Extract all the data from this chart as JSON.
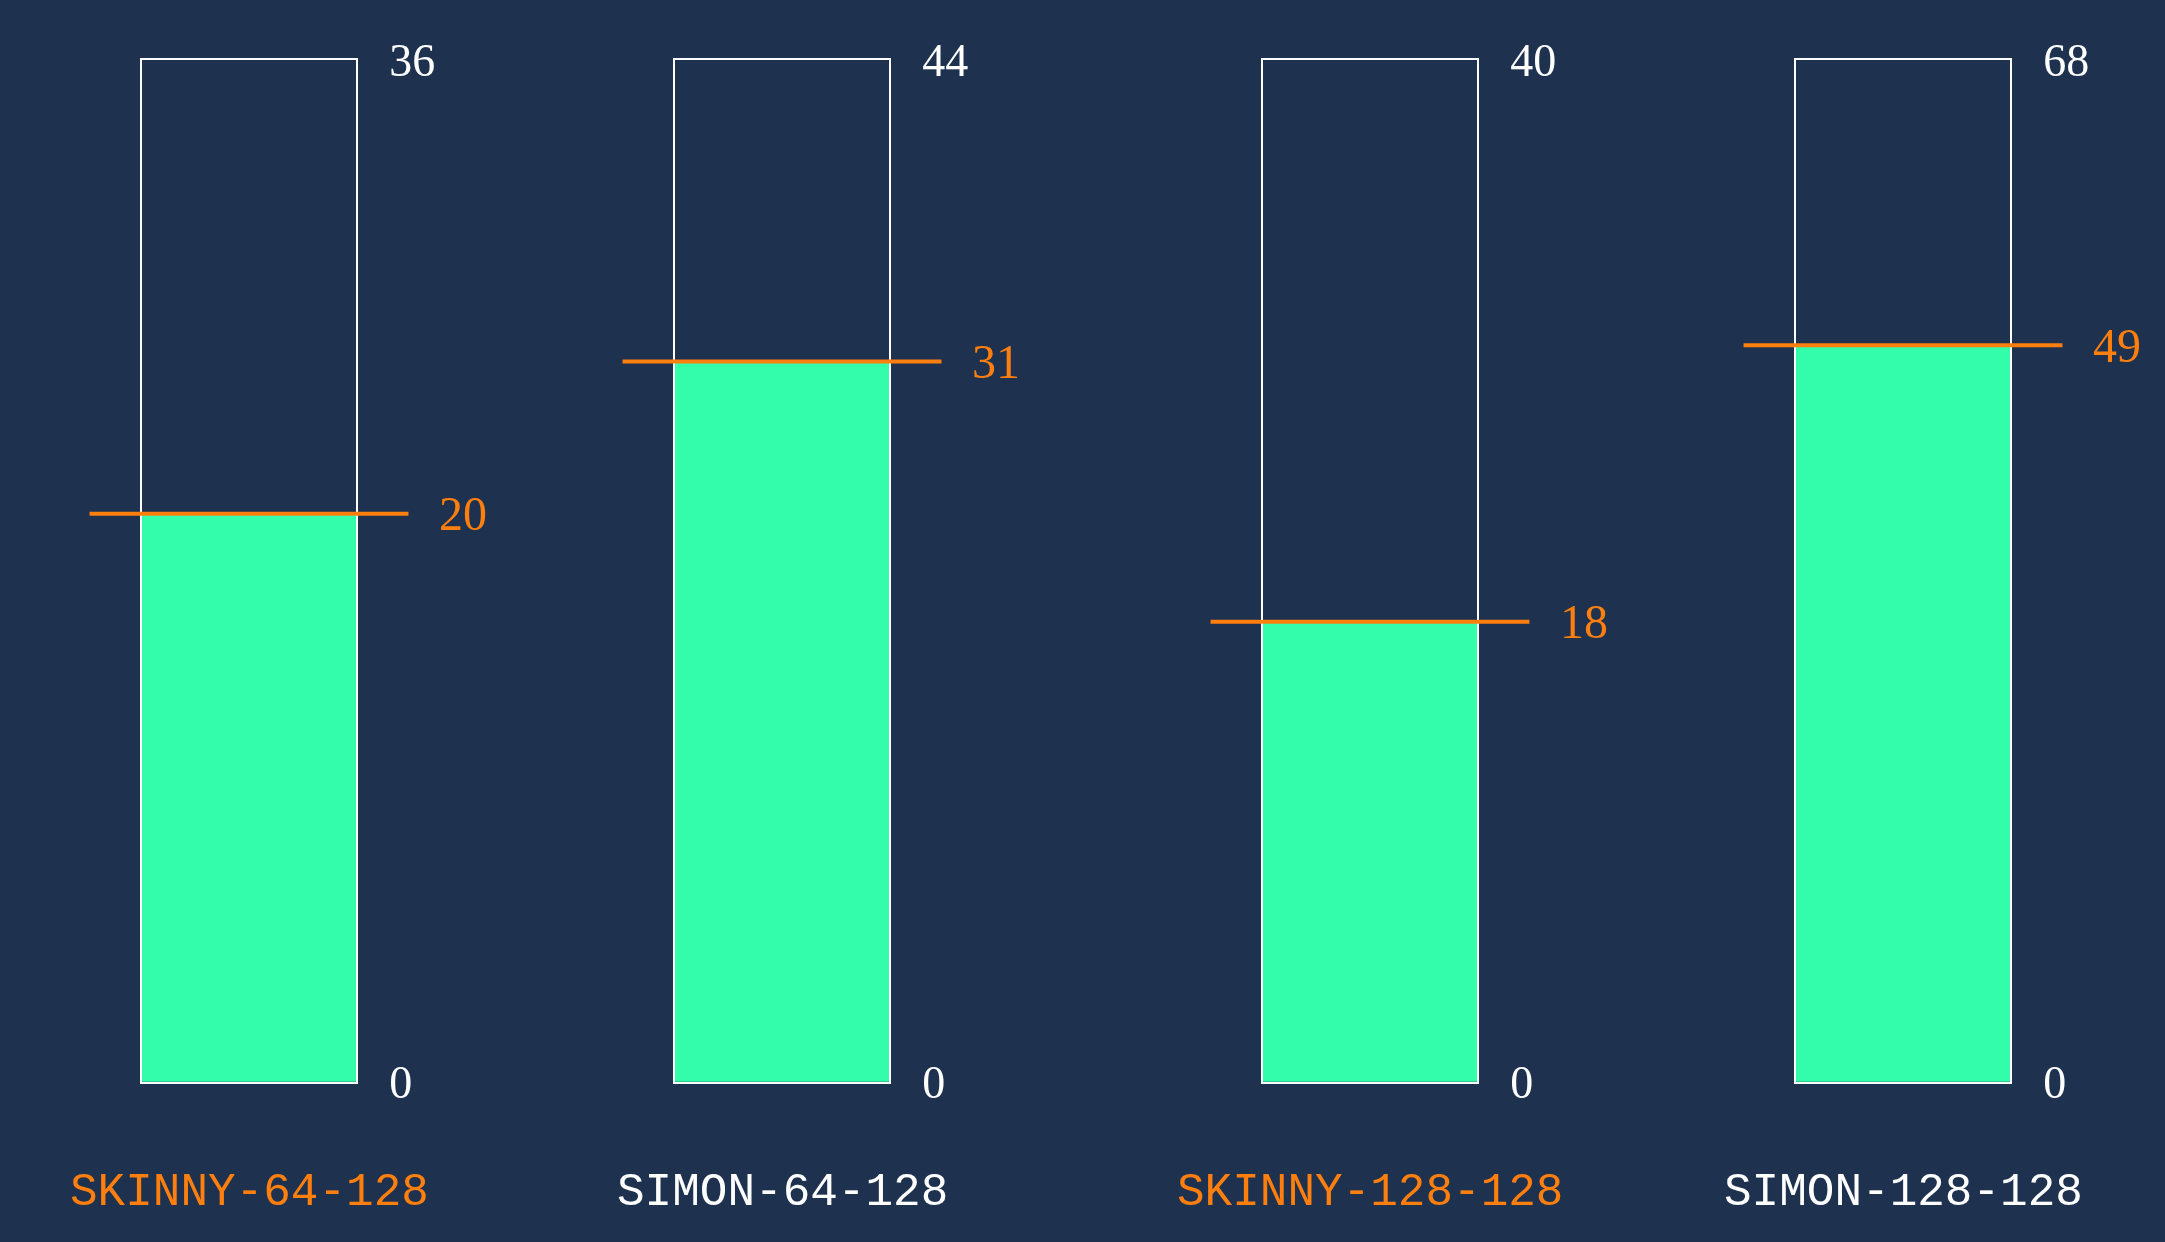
{
  "chart_data": [
    {
      "type": "bar",
      "categories": [
        null
      ],
      "values": [
        20
      ],
      "color": "#33fdab",
      "ylim": [
        0,
        36
      ],
      "yticks": [
        0,
        36
      ],
      "xlabel": "SKINNY-64-128",
      "ref_lines": [
        {
          "axis": "y",
          "value": 20,
          "label": "20",
          "color": "#ff7f0e"
        }
      ]
    },
    {
      "type": "bar",
      "categories": [
        null
      ],
      "values": [
        31
      ],
      "color": "#33fdab",
      "ylim": [
        0,
        44
      ],
      "yticks": [
        0,
        44
      ],
      "xlabel": "SIMON-64-128",
      "ref_lines": [
        {
          "axis": "y",
          "value": 31,
          "label": "31",
          "color": "#ff7f0e"
        }
      ]
    },
    {
      "type": "bar",
      "categories": [
        null
      ],
      "values": [
        18
      ],
      "color": "#33fdab",
      "ylim": [
        0,
        40
      ],
      "yticks": [
        0,
        40
      ],
      "xlabel": "SKINNY-128-128",
      "ref_lines": [
        {
          "axis": "y",
          "value": 18,
          "label": "18",
          "color": "#ff7f0e"
        }
      ]
    },
    {
      "type": "bar",
      "categories": [
        null
      ],
      "values": [
        49
      ],
      "color": "#33fdab",
      "ylim": [
        0,
        68
      ],
      "yticks": [
        0,
        68
      ],
      "xlabel": "SIMON-128-128",
      "ref_lines": [
        {
          "axis": "y",
          "value": 49,
          "label": "49",
          "color": "#ff7f0e"
        }
      ]
    }
  ]
}
